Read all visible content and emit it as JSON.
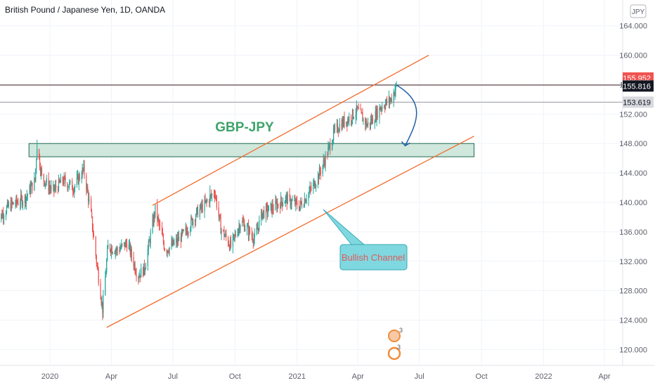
{
  "header": {
    "symbol_title": "British Pound / Japanese Yen, 1D, OANDA"
  },
  "currency_button": {
    "label": "JPY"
  },
  "annotations": {
    "title": "GBP-JPY",
    "callout": "Bullish Channel"
  },
  "price_badges": [
    {
      "value": "155.952",
      "bg": "#f05350",
      "fg": "#ffffff"
    },
    {
      "value": "155.816",
      "bg": "#131722",
      "fg": "#ffffff"
    },
    {
      "value": "153.619",
      "bg": "#d7d9de",
      "fg": "#131722"
    }
  ],
  "colors": {
    "up": "#26a69a",
    "down": "#ef5350",
    "channel": "#f26b2b",
    "zone_fill": "#cfe7dc",
    "zone_border": "#1f6b4f",
    "title_text": "#3fa36b",
    "callout_fill": "#7fd8e0",
    "callout_text": "#e05a5a",
    "arrow": "#1f5fa8",
    "grid": "#f0f3fa",
    "axis_text": "#5d606b"
  },
  "chart_data": {
    "type": "candlestick",
    "title": "British Pound / Japanese Yen, 1D, OANDA",
    "ylim": [
      117,
      166
    ],
    "y_ticks": [
      120,
      124,
      128,
      132,
      136,
      140,
      144,
      148,
      152,
      156,
      160,
      164
    ],
    "y_tick_labels": [
      "120.000",
      "124.000",
      "128.000",
      "132.000",
      "136.000",
      "140.000",
      "144.000",
      "148.000",
      "152.000",
      "156.000",
      "160.000",
      "164.000"
    ],
    "x_ticks": [
      "2020",
      "Apr",
      "Jul",
      "Oct",
      "2021",
      "Apr",
      "Jul",
      "Oct",
      "2022",
      "Apr"
    ],
    "x_tick_dates": [
      "2020-01-01",
      "2020-04-01",
      "2020-07-01",
      "2020-10-01",
      "2021-01-01",
      "2021-04-01",
      "2021-07-01",
      "2021-10-01",
      "2022-01-01",
      "2022-04-01"
    ],
    "price_path": [
      [
        "2019-10-15",
        137.5
      ],
      [
        "2019-11-01",
        139.5
      ],
      [
        "2019-11-25",
        140.5
      ],
      [
        "2019-12-10",
        143.0
      ],
      [
        "2019-12-13",
        147.8
      ],
      [
        "2019-12-20",
        143.5
      ],
      [
        "2020-01-05",
        141.5
      ],
      [
        "2020-01-20",
        143.0
      ],
      [
        "2020-02-05",
        142.0
      ],
      [
        "2020-02-20",
        144.5
      ],
      [
        "2020-03-01",
        139.0
      ],
      [
        "2020-03-10",
        132.0
      ],
      [
        "2020-03-19",
        125.5
      ],
      [
        "2020-03-27",
        134.0
      ],
      [
        "2020-04-10",
        133.5
      ],
      [
        "2020-04-25",
        134.5
      ],
      [
        "2020-05-10",
        130.0
      ],
      [
        "2020-05-20",
        131.0
      ],
      [
        "2020-06-05",
        139.0
      ],
      [
        "2020-06-20",
        133.5
      ],
      [
        "2020-07-05",
        134.5
      ],
      [
        "2020-07-20",
        136.0
      ],
      [
        "2020-08-05",
        138.5
      ],
      [
        "2020-08-20",
        140.0
      ],
      [
        "2020-09-01",
        141.5
      ],
      [
        "2020-09-10",
        136.5
      ],
      [
        "2020-09-25",
        134.0
      ],
      [
        "2020-10-10",
        137.5
      ],
      [
        "2020-10-30",
        135.0
      ],
      [
        "2020-11-10",
        138.5
      ],
      [
        "2020-11-30",
        139.5
      ],
      [
        "2020-12-15",
        140.5
      ],
      [
        "2021-01-05",
        139.5
      ],
      [
        "2021-01-20",
        141.5
      ],
      [
        "2021-02-01",
        143.5
      ],
      [
        "2021-02-12",
        146.0
      ],
      [
        "2021-02-25",
        149.5
      ],
      [
        "2021-03-05",
        150.5
      ],
      [
        "2021-03-20",
        151.5
      ],
      [
        "2021-03-31",
        152.5
      ],
      [
        "2021-04-15",
        150.5
      ],
      [
        "2021-04-25",
        151.5
      ],
      [
        "2021-05-05",
        153.0
      ],
      [
        "2021-05-20",
        154.0
      ],
      [
        "2021-05-28",
        155.8
      ]
    ],
    "spike_highs": [
      [
        "2019-12-13",
        148.5
      ],
      [
        "2020-06-05",
        139.6
      ],
      [
        "2020-08-25",
        142.3
      ]
    ],
    "spike_lows": [
      [
        "2020-03-19",
        124.0
      ]
    ],
    "horizontal_lines": [
      155.952,
      153.619
    ],
    "support_zone": {
      "top": 148.0,
      "bottom": 146.2,
      "from": "2019-12-01",
      "to": "2021-09-20"
    },
    "channel_upper": {
      "from": [
        "2020-06-01",
        139.6
      ],
      "to": [
        "2021-07-15",
        160.0
      ]
    },
    "channel_lower": {
      "from": [
        "2020-03-25",
        123.0
      ],
      "to": [
        "2021-09-20",
        149.0
      ]
    },
    "grid": true
  }
}
